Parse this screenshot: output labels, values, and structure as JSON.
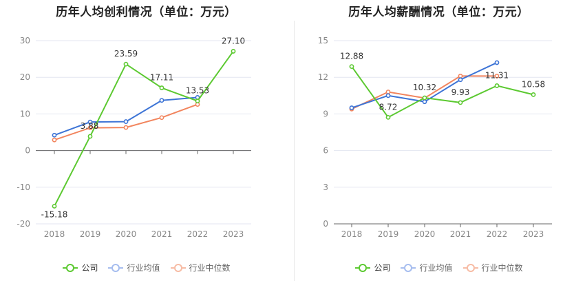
{
  "chart_data": [
    {
      "type": "line",
      "title": "历年人均创利情况（单位：万元）",
      "categories": [
        "2018",
        "2019",
        "2020",
        "2021",
        "2022",
        "2023"
      ],
      "y_ticks": [
        "30",
        "20",
        "10",
        "0",
        "-10",
        "-20"
      ],
      "ylim": [
        -20,
        30
      ],
      "grid": true,
      "legend_position": "bottom",
      "series": [
        {
          "name": "公司",
          "color": "#5cc931",
          "values": [
            -15.18,
            3.88,
            23.59,
            17.11,
            13.53,
            27.1
          ],
          "labels": [
            "-15.18",
            "3.88",
            "23.59",
            "17.11",
            "13.53",
            "27.10"
          ]
        },
        {
          "name": "行业均值",
          "color": "#3d74d6",
          "values": [
            4.2,
            7.8,
            7.9,
            13.7,
            14.5,
            null
          ]
        },
        {
          "name": "行业中位数",
          "color": "#f2855e",
          "values": [
            2.9,
            6.2,
            6.3,
            9.0,
            12.6,
            null
          ]
        }
      ]
    },
    {
      "type": "line",
      "title": "历年人均薪酬情况（单位：万元）",
      "categories": [
        "2018",
        "2019",
        "2020",
        "2021",
        "2022",
        "2023"
      ],
      "y_ticks": [
        "15",
        "12",
        "9",
        "6",
        "3",
        "0"
      ],
      "ylim": [
        0,
        15
      ],
      "grid": true,
      "legend_position": "bottom",
      "series": [
        {
          "name": "公司",
          "color": "#5cc931",
          "values": [
            12.88,
            8.72,
            10.32,
            9.93,
            11.31,
            10.58
          ],
          "labels": [
            "12.88",
            "8.72",
            "10.32",
            "9.93",
            "11.31",
            "10.58"
          ]
        },
        {
          "name": "行业均值",
          "color": "#3d74d6",
          "values": [
            9.5,
            10.5,
            10.0,
            11.8,
            13.2,
            null
          ]
        },
        {
          "name": "行业中位数",
          "color": "#f2855e",
          "values": [
            9.4,
            10.8,
            10.3,
            12.1,
            12.1,
            null
          ]
        }
      ]
    }
  ]
}
